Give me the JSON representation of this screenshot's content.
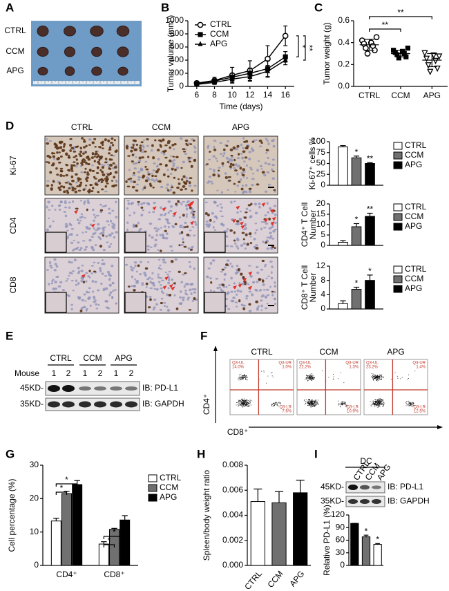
{
  "panel_labels": [
    "A",
    "B",
    "C",
    "D",
    "E",
    "F",
    "G",
    "H",
    "I"
  ],
  "panel_a": {
    "rows": [
      "CTRL",
      "CCM",
      "APG"
    ]
  },
  "panel_d": {
    "columns": [
      "CTRL",
      "CCM",
      "APG"
    ],
    "rows": [
      "Ki-67",
      "CD4",
      "CD8"
    ]
  },
  "panel_e": {
    "mouse_label": "Mouse",
    "groups": [
      "CTRL",
      "CCM",
      "APG"
    ],
    "lanes": [
      1,
      2,
      1,
      2,
      1,
      2
    ],
    "markers": [
      "45KD-",
      "35KD-"
    ],
    "blots": [
      "IB: PD-L1",
      "IB: GAPDH"
    ]
  },
  "panel_f": {
    "columns": [
      "CTRL",
      "CCM",
      "APG"
    ],
    "y_label": "CD4⁺",
    "x_label": "CD8⁺",
    "plots": [
      {
        "UL": [
          "Q3-UL",
          "14.0%"
        ],
        "UR": [
          "Q3-UR",
          "1.0%"
        ],
        "LR": [
          "Q3-LR",
          "7.6%"
        ]
      },
      {
        "UL": [
          "Q3-UL",
          "22.2%"
        ],
        "UR": [
          "Q3-UR",
          "1.3%"
        ],
        "LR": [
          "Q3-LR",
          "10.9%"
        ]
      },
      {
        "UL": [
          "Q3-UL",
          "23.2%"
        ],
        "UR": [
          "Q3-UR",
          "1.4%"
        ],
        "LR": [
          "Q3-LR",
          "12.5%"
        ]
      }
    ]
  },
  "panel_i": {
    "group": "DC",
    "lanes": [
      "CTRL",
      "CCM",
      "APG"
    ],
    "markers": [
      "45KD-",
      "35KD-"
    ],
    "blots": [
      "IB: PD-L1",
      "IB: GAPDH"
    ]
  },
  "chart_data": [
    {
      "type": "line",
      "ylabel": "Tumor volume (mm³)",
      "xlabel": "Time  (days)",
      "x": [
        6,
        8,
        10,
        12,
        14,
        16
      ],
      "xlim": [
        5,
        17
      ],
      "xticks": [
        6,
        8,
        10,
        12,
        14,
        16
      ],
      "ylim": [
        0,
        1000
      ],
      "yticks": [
        0,
        200,
        400,
        600,
        800,
        1000
      ],
      "series": [
        {
          "name": "CTRL",
          "color": "#000000",
          "marker": "circle",
          "values": [
            50,
            90,
            170,
            240,
            420,
            770
          ],
          "errors": [
            30,
            50,
            120,
            150,
            200,
            150
          ]
        },
        {
          "name": "CCM",
          "color": "#000000",
          "marker": "square",
          "values": [
            40,
            80,
            140,
            200,
            270,
            450
          ],
          "errors": [
            20,
            30,
            60,
            80,
            120,
            80
          ]
        },
        {
          "name": "APG",
          "color": "#000000",
          "marker": "triangle",
          "values": [
            30,
            60,
            110,
            150,
            230,
            400
          ],
          "errors": [
            20,
            30,
            50,
            70,
            90,
            70
          ]
        }
      ],
      "annotations": [
        "*",
        "**"
      ]
    },
    {
      "type": "scatter",
      "ylabel": "Tumor weight (g)",
      "categories": [
        "CTRL",
        "CCM",
        "APG"
      ],
      "markers": [
        "circle",
        "square",
        "triangle-down"
      ],
      "color": "#000000",
      "values": [
        [
          0.42,
          0.4,
          0.39,
          0.37,
          0.35,
          0.33,
          0.3,
          0.45
        ],
        [
          0.33,
          0.32,
          0.31,
          0.3,
          0.29,
          0.27,
          0.26,
          0.35
        ],
        [
          0.31,
          0.29,
          0.26,
          0.24,
          0.2,
          0.17,
          0.14,
          0.28
        ]
      ],
      "means": [
        0.38,
        0.3,
        0.24
      ],
      "sd": [
        0.05,
        0.03,
        0.06
      ],
      "ylim": [
        0,
        0.6
      ],
      "yticks": [
        {
          "value": 0,
          "label": "0.0"
        },
        0.2,
        0.4,
        0.6
      ],
      "brackets": [
        "**",
        "**"
      ]
    },
    {
      "type": "bar",
      "ylabel": "Ki-67⁺ cells %",
      "categories": [
        null
      ],
      "series": [
        {
          "name": "CTRL",
          "color": "#ffffff",
          "values": [
            88
          ],
          "errors": [
            3
          ],
          "significance": [
            null
          ]
        },
        {
          "name": "CCM",
          "color": "#707070",
          "values": [
            63
          ],
          "errors": [
            4
          ],
          "significance": [
            "*"
          ]
        },
        {
          "name": "APG",
          "color": "#000000",
          "values": [
            50
          ],
          "errors": [
            2
          ],
          "significance": [
            "**"
          ]
        }
      ],
      "ylim": [
        0,
        100
      ],
      "yticks": [
        0,
        25,
        50,
        75,
        100
      ]
    },
    {
      "type": "bar",
      "ylabel": [
        "CD4⁺ T Cell",
        "Number"
      ],
      "categories": [
        null
      ],
      "series": [
        {
          "name": "CTRL",
          "color": "#ffffff",
          "values": [
            1.5
          ],
          "errors": [
            0.8
          ],
          "significance": [
            null
          ]
        },
        {
          "name": "CCM",
          "color": "#707070",
          "values": [
            9
          ],
          "errors": [
            1.5
          ],
          "significance": [
            "*"
          ]
        },
        {
          "name": "APG",
          "color": "#000000",
          "values": [
            14
          ],
          "errors": [
            1.5
          ],
          "significance": [
            "**"
          ]
        }
      ],
      "ylim": [
        0,
        20
      ],
      "yticks": [
        0,
        5,
        10,
        15,
        20
      ]
    },
    {
      "type": "bar",
      "ylabel": [
        "CD8⁺ T Cell",
        "Number"
      ],
      "categories": [
        null
      ],
      "series": [
        {
          "name": "CTRL",
          "color": "#ffffff",
          "values": [
            1.5
          ],
          "errors": [
            0.8
          ],
          "significance": [
            null
          ]
        },
        {
          "name": "CCM",
          "color": "#707070",
          "values": [
            5.5
          ],
          "errors": [
            0.6
          ],
          "significance": [
            "*"
          ]
        },
        {
          "name": "APG",
          "color": "#000000",
          "values": [
            8
          ],
          "errors": [
            1.5
          ],
          "significance": [
            "*"
          ]
        }
      ],
      "ylim": [
        0,
        12
      ],
      "yticks": [
        0,
        4,
        8,
        12
      ]
    },
    {
      "type": "bar",
      "ylabel": "Cell percentage (%)",
      "categories": [
        "CD4⁺",
        "CD8⁺"
      ],
      "series": [
        {
          "name": "CTRL",
          "color": "#ffffff",
          "values": [
            13.3,
            6.4
          ],
          "errors": [
            0.8,
            0.7
          ]
        },
        {
          "name": "CCM",
          "color": "#707070",
          "values": [
            21.5,
            10.8
          ],
          "errors": [
            0.7,
            0.3
          ]
        },
        {
          "name": "APG",
          "color": "#000000",
          "values": [
            24.2,
            13.6
          ],
          "errors": [
            1.2,
            1.3
          ]
        }
      ],
      "ylim": [
        0,
        30
      ],
      "yticks": [
        0,
        10,
        20,
        30
      ],
      "brackets": [
        "*",
        "*",
        "*",
        "*"
      ]
    },
    {
      "type": "bar",
      "ylabel": "Spleen/body weight ratio",
      "categories": [
        "CTRL",
        "CCM",
        "APG"
      ],
      "values": [
        0.0051,
        0.005,
        0.0058
      ],
      "errors": [
        0.001,
        0.0009,
        0.001
      ],
      "colors": [
        "#ffffff",
        "#707070",
        "#000000"
      ],
      "ylim": [
        0,
        0.008
      ],
      "yticks": [
        {
          "value": 0,
          "label": "0.000"
        },
        0.002,
        0.004,
        0.006,
        0.008
      ]
    },
    {
      "type": "bar",
      "ylabel": "Relative PD-L1 (%)",
      "categories": [
        null,
        null,
        null
      ],
      "values": [
        100,
        68,
        50
      ],
      "errors": [
        0,
        4,
        2
      ],
      "significance": [
        null,
        "*",
        "*"
      ],
      "colors": [
        "#000000",
        "#707070",
        "#ffffff"
      ],
      "ylim": [
        0,
        120
      ],
      "yticks": [
        0,
        30,
        60,
        90,
        120
      ]
    }
  ]
}
